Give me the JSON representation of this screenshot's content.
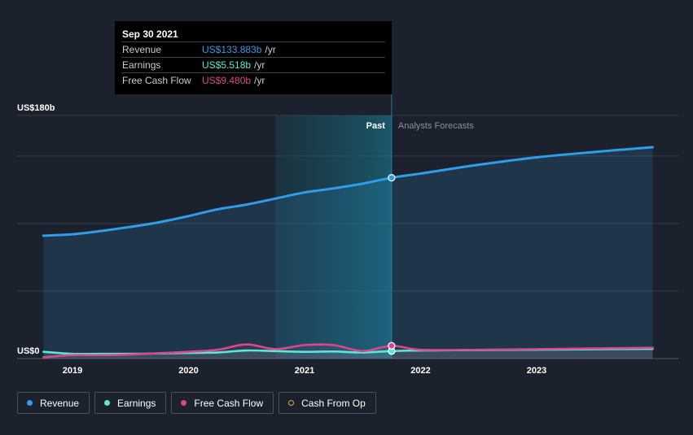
{
  "tooltip": {
    "date": "Sep 30 2021",
    "rows": [
      {
        "label": "Revenue",
        "value": "US$133.883b",
        "unit": "/yr",
        "color": "#2f9de8"
      },
      {
        "label": "Earnings",
        "value": "US$5.518b",
        "unit": "/yr",
        "color": "#5ae8cf"
      },
      {
        "label": "Free Cash Flow",
        "value": "US$9.480b",
        "unit": "/yr",
        "color": "#d8488e"
      }
    ]
  },
  "legend": [
    {
      "label": "Revenue",
      "color": "#2f9de8",
      "style": "filled"
    },
    {
      "label": "Earnings",
      "color": "#5ae8cf",
      "style": "filled"
    },
    {
      "label": "Free Cash Flow",
      "color": "#d8488e",
      "style": "filled"
    },
    {
      "label": "Cash From Op",
      "color": "#e8a23f",
      "style": "hollow"
    }
  ],
  "chart_data": {
    "type": "line",
    "ylim": [
      0,
      180
    ],
    "y_tick_labels": [
      {
        "value": 180,
        "label": "US$180b"
      },
      {
        "value": 0,
        "label": "US$0"
      }
    ],
    "gridlines": [
      180,
      150,
      100,
      50,
      0
    ],
    "x_tick_labels": [
      {
        "value": 2019,
        "label": "2019"
      },
      {
        "value": 2020,
        "label": "2020"
      },
      {
        "value": 2021,
        "label": "2021"
      },
      {
        "value": 2022,
        "label": "2022"
      },
      {
        "value": 2023,
        "label": "2023"
      }
    ],
    "xlim": [
      2018.55,
      2024.2
    ],
    "past_label": "Past",
    "forecast_label": "Analysts Forecasts",
    "highlight_range": [
      2020.75,
      2021.75
    ],
    "past_end": 2021.75,
    "series": [
      {
        "name": "Revenue",
        "color": "#2f9de8",
        "points": [
          [
            2018.75,
            91
          ],
          [
            2019.0,
            92
          ],
          [
            2019.25,
            94.5
          ],
          [
            2019.5,
            97.5
          ],
          [
            2019.75,
            101
          ],
          [
            2020.0,
            105.5
          ],
          [
            2020.25,
            110.5
          ],
          [
            2020.5,
            114
          ],
          [
            2020.75,
            118.5
          ],
          [
            2021.0,
            123
          ],
          [
            2021.25,
            126
          ],
          [
            2021.5,
            129.5
          ],
          [
            2021.75,
            133.883
          ],
          [
            2022.0,
            137
          ],
          [
            2022.5,
            143.5
          ],
          [
            2023.0,
            149
          ],
          [
            2023.5,
            153
          ],
          [
            2024.0,
            156.5
          ]
        ]
      },
      {
        "name": "Earnings",
        "color": "#5ae8cf",
        "points": [
          [
            2018.75,
            5
          ],
          [
            2019.0,
            3.5
          ],
          [
            2019.25,
            3.5
          ],
          [
            2019.5,
            3.5
          ],
          [
            2019.75,
            3.8
          ],
          [
            2020.0,
            4.2
          ],
          [
            2020.25,
            4.5
          ],
          [
            2020.5,
            6
          ],
          [
            2020.75,
            5.5
          ],
          [
            2021.0,
            5
          ],
          [
            2021.25,
            5.2
          ],
          [
            2021.5,
            4.5
          ],
          [
            2021.75,
            5.518
          ],
          [
            2022.0,
            6
          ],
          [
            2022.5,
            6.3
          ],
          [
            2023.0,
            6.6
          ],
          [
            2023.5,
            6.9
          ],
          [
            2024.0,
            7.2
          ]
        ]
      },
      {
        "name": "Free Cash Flow",
        "color": "#d8488e",
        "points": [
          [
            2018.75,
            1
          ],
          [
            2019.0,
            2.5
          ],
          [
            2019.25,
            2.5
          ],
          [
            2019.5,
            3
          ],
          [
            2019.75,
            4
          ],
          [
            2020.0,
            5
          ],
          [
            2020.25,
            6.5
          ],
          [
            2020.5,
            10.5
          ],
          [
            2020.75,
            7
          ],
          [
            2021.0,
            10
          ],
          [
            2021.25,
            10
          ],
          [
            2021.5,
            5.5
          ],
          [
            2021.75,
            9.48
          ],
          [
            2022.0,
            6.5
          ],
          [
            2022.5,
            6.5
          ],
          [
            2023.0,
            7
          ],
          [
            2023.5,
            7.5
          ],
          [
            2024.0,
            8
          ]
        ]
      }
    ]
  }
}
